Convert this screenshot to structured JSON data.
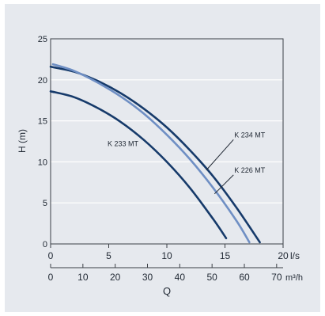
{
  "chart_data": {
    "type": "line",
    "ylabel": "H (m)",
    "xlabel": "Q",
    "x_unit_primary": "l/s",
    "x_unit_secondary": "m³/h",
    "xlim": [
      0,
      20
    ],
    "ylim": [
      0,
      25
    ],
    "x_ticks": [
      "0",
      "5",
      "10",
      "15",
      "20"
    ],
    "x2_ticks": [
      "0",
      "10",
      "20",
      "30",
      "40",
      "50",
      "60",
      "70"
    ],
    "y_ticks": [
      "0",
      "5",
      "10",
      "15",
      "20",
      "25"
    ],
    "grid": true,
    "series": [
      {
        "name": "K 234 MT",
        "color": "#163a6a",
        "points": [
          [
            0,
            21.6
          ],
          [
            2,
            21.0
          ],
          [
            4,
            19.9
          ],
          [
            6,
            18.4
          ],
          [
            8,
            16.5
          ],
          [
            10,
            14.2
          ],
          [
            12,
            11.4
          ],
          [
            14,
            8.2
          ],
          [
            16,
            4.4
          ],
          [
            18,
            0.2
          ]
        ]
      },
      {
        "name": "K 226 MT",
        "color": "#6f8fc4",
        "points": [
          [
            0.2,
            21.9
          ],
          [
            2,
            21.1
          ],
          [
            4,
            19.7
          ],
          [
            6,
            18.0
          ],
          [
            8,
            15.9
          ],
          [
            10,
            13.3
          ],
          [
            12,
            10.3
          ],
          [
            14,
            6.8
          ],
          [
            16,
            2.8
          ],
          [
            17.1,
            0.2
          ]
        ]
      },
      {
        "name": "K 233 MT",
        "color": "#163a6a",
        "points": [
          [
            0,
            18.6
          ],
          [
            2,
            17.9
          ],
          [
            4,
            16.6
          ],
          [
            6,
            14.9
          ],
          [
            8,
            12.7
          ],
          [
            10,
            10.0
          ],
          [
            12,
            6.8
          ],
          [
            14,
            3.0
          ],
          [
            15.1,
            0.7
          ]
        ]
      }
    ],
    "annotations": [
      {
        "text": "K 233 MT",
        "at": [
          4.9,
          11.9
        ]
      },
      {
        "text": "K 234 MT",
        "at": [
          15.8,
          13.0
        ],
        "leader_to": [
          13.4,
          9.0
        ]
      },
      {
        "text": "K 226 MT",
        "at": [
          15.8,
          8.7
        ],
        "leader_to": [
          14.1,
          6.1
        ]
      }
    ]
  }
}
